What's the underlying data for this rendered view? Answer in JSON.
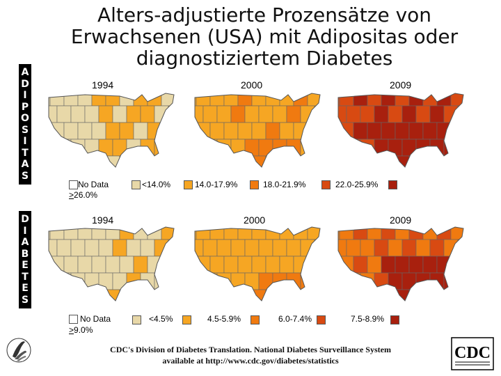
{
  "title": "Alters-adjustierte Prozensätze von Erwachsenen (USA) mit Adipositas oder diagnostiziertem Diabetes",
  "sections": {
    "obesity": {
      "side_label": "ADIPOSITAS",
      "years": [
        "1994",
        "2000",
        "2009"
      ],
      "legend": [
        "No Data",
        "<14.0%",
        "14.0-17.9%",
        "18.0-21.9%",
        "22.0-25.9%",
        ">26.0%"
      ]
    },
    "diabetes": {
      "side_label": "DIABETES",
      "years": [
        "1994",
        "2000",
        "2009"
      ],
      "legend": [
        "No Data",
        "<4.5%",
        "4.5-5.9%",
        "6.0-7.4%",
        "7.5-8.9%",
        ">9.0%"
      ]
    }
  },
  "colors": {
    "no_data": "#ffffff",
    "class1": "#e8d8a8",
    "class2": "#f6a623",
    "class3": "#f07a10",
    "class4": "#d84a12",
    "class5": "#a8200e"
  },
  "footer": {
    "line1": "CDC's Division of Diabetes Translation. National Diabetes Surveillance System",
    "line2": "available at http://www.cdc.gov/diabetes/statistics"
  },
  "logos": {
    "left": "hhs-eagle-logo",
    "right": "CDC"
  }
}
